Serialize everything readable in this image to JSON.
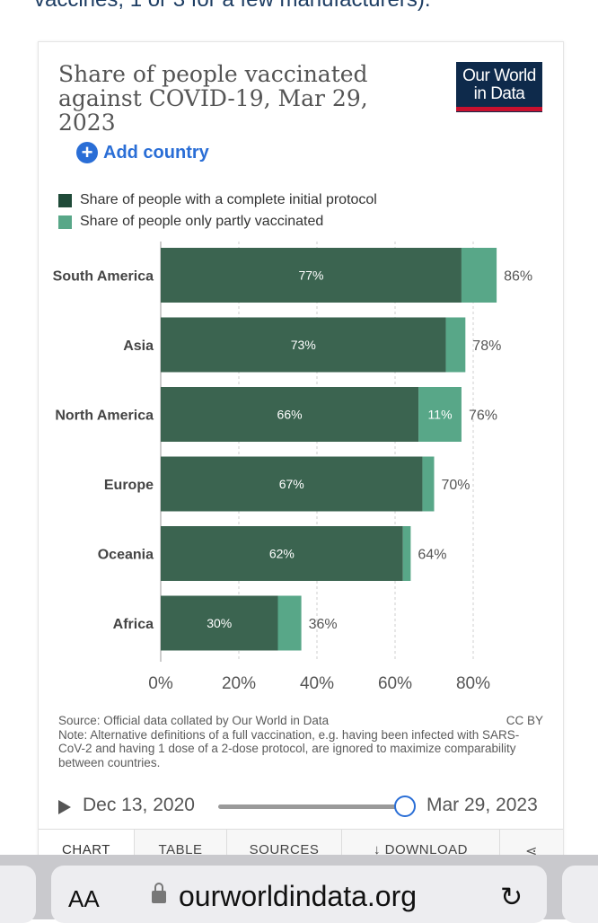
{
  "page": {
    "top_snippet": "vaccines, 1 or 3 for a few manufacturers)."
  },
  "header": {
    "title": "Share of people vaccinated against COVID-19, Mar 29, 2023",
    "logo_line1": "Our World",
    "logo_line2": "in Data"
  },
  "controls": {
    "add_country": "Add country"
  },
  "legend": {
    "complete": "Share of people with a complete initial protocol",
    "partial": "Share of people only partly vaccinated"
  },
  "colors": {
    "complete": "#3b6450",
    "partial": "#58a788",
    "accent": "#2a6ed6",
    "logo_bg": "#0e2a4b",
    "logo_bar": "#c8102e"
  },
  "chart_data": {
    "type": "bar",
    "orientation": "horizontal",
    "stacked": true,
    "categories": [
      "South America",
      "Asia",
      "North America",
      "Europe",
      "Oceania",
      "Africa"
    ],
    "series": [
      {
        "name": "Share of people with a complete initial protocol",
        "values": [
          77,
          73,
          66,
          67,
          62,
          30
        ],
        "labels": [
          "77%",
          "73%",
          "66%",
          "67%",
          "62%",
          "30%"
        ]
      },
      {
        "name": "Share of people only partly vaccinated",
        "values": [
          9,
          5,
          11,
          3,
          2,
          6
        ],
        "labels": [
          "",
          "",
          "11%",
          "",
          "",
          ""
        ]
      }
    ],
    "totals": [
      "86%",
      "78%",
      "76%",
      "70%",
      "64%",
      "36%"
    ],
    "x_ticks": [
      0,
      20,
      40,
      60,
      80
    ],
    "x_tick_labels": [
      "0%",
      "20%",
      "40%",
      "60%",
      "80%"
    ],
    "xlim": [
      0,
      86
    ],
    "grid": true,
    "legend_position": "top-left"
  },
  "footer": {
    "source": "Source: Official data collated by Our World in Data",
    "license": "CC BY",
    "note": "Note: Alternative definitions of a full vaccination, e.g. having been infected with SARS-CoV-2 and having 1 dose of a 2-dose protocol, are ignored to maximize comparability between countries."
  },
  "timeline": {
    "start": "Dec 13, 2020",
    "end": "Mar 29, 2023",
    "position": 1.0
  },
  "tabs": [
    {
      "label": "CHART"
    },
    {
      "label": "TABLE"
    },
    {
      "label": "SOURCES"
    },
    {
      "label": "↓ DOWNLOAD"
    },
    {
      "label": ""
    }
  ],
  "browser": {
    "aa": "AA",
    "url": "ourworldindata.org",
    "reload": "↻"
  }
}
